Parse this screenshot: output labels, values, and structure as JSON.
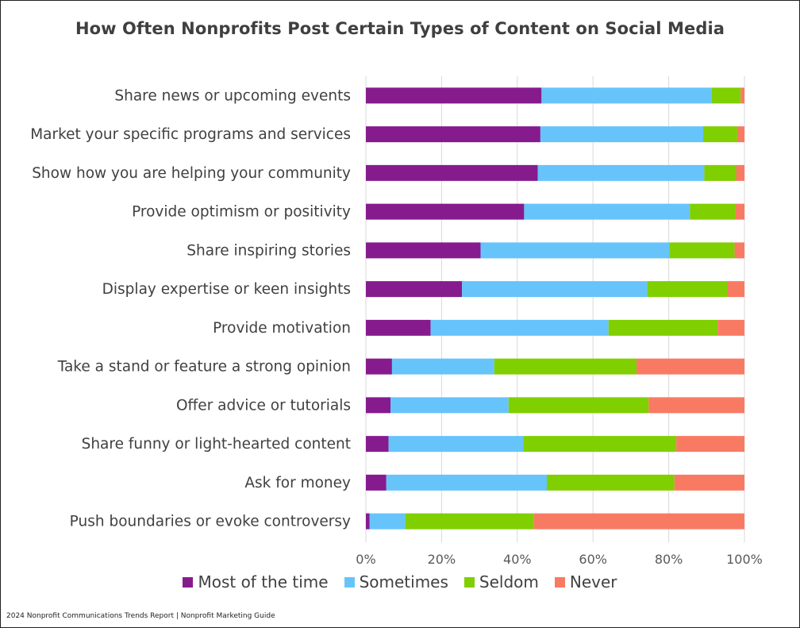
{
  "chart_data": {
    "type": "bar",
    "orientation": "horizontal",
    "stacked": "percent",
    "title": "How Often Nonprofits Post Certain Types of Content on Social Media",
    "categories": [
      "Share news or upcoming events",
      "Market your specific programs and services",
      "Show how you are helping your community",
      "Provide optimism or positivity",
      "Share inspiring stories",
      "Display expertise or keen insights",
      "Provide motivation",
      "Take a stand or feature a strong opinion",
      "Offer advice or tutorials",
      "Share funny or light-hearted content",
      "Ask for money",
      "Push boundaries or evoke controversy"
    ],
    "series": [
      {
        "name": "Most of the time",
        "color": "#861b8e",
        "values": [
          46.4,
          46.1,
          45.4,
          41.8,
          30.3,
          25.4,
          17.1,
          6.9,
          6.5,
          6.0,
          5.4,
          1.0
        ]
      },
      {
        "name": "Sometimes",
        "color": "#66c4fa",
        "values": [
          45.0,
          43.0,
          44.0,
          43.8,
          49.9,
          48.9,
          47.0,
          27.0,
          31.2,
          35.6,
          42.4,
          9.4
        ]
      },
      {
        "name": "Seldom",
        "color": "#80cf00",
        "values": [
          7.6,
          9.0,
          8.4,
          12.0,
          17.2,
          21.2,
          28.8,
          37.6,
          37.0,
          40.4,
          33.7,
          34.0
        ]
      },
      {
        "name": "Never",
        "color": "#f97a63",
        "values": [
          1.0,
          1.9,
          2.2,
          2.4,
          2.6,
          4.5,
          7.1,
          28.5,
          25.3,
          18.0,
          18.5,
          55.6
        ]
      }
    ],
    "xlim": [
      0,
      100
    ],
    "xticks": [
      "0%",
      "20%",
      "40%",
      "60%",
      "80%",
      "100%"
    ],
    "grid": "vertical",
    "legend_position": "bottom"
  },
  "legend": [
    {
      "label": "Most of the time",
      "color": "#861b8e"
    },
    {
      "label": "Sometimes",
      "color": "#66c4fa"
    },
    {
      "label": "Seldom",
      "color": "#80cf00"
    },
    {
      "label": "Never",
      "color": "#f97a63"
    }
  ],
  "source": "2024 Nonprofit Communications Trends Report | Nonprofit Marketing Guide"
}
